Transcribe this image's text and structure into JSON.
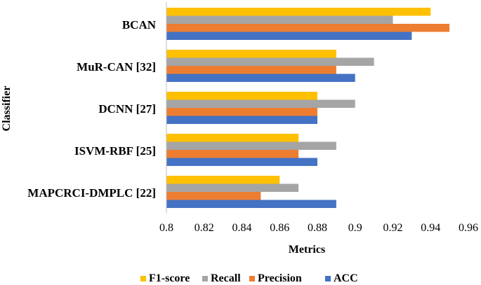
{
  "chart_data": {
    "type": "bar",
    "orientation": "horizontal",
    "categories": [
      "BCAN",
      "MuR-CAN [32]",
      "DCNN [27]",
      "ISVM-RBF [25]",
      "MAPCRCI-DMPLC [22]"
    ],
    "series": [
      {
        "name": "F1-score",
        "color": "#FFC000",
        "values": [
          0.94,
          0.89,
          0.88,
          0.87,
          0.86
        ]
      },
      {
        "name": "Recall",
        "color": "#A5A5A5",
        "values": [
          0.92,
          0.91,
          0.9,
          0.89,
          0.87
        ]
      },
      {
        "name": "Precision",
        "color": "#ED7D31",
        "values": [
          0.95,
          0.89,
          0.88,
          0.87,
          0.85
        ]
      },
      {
        "name": "ACC",
        "color": "#4472C4",
        "values": [
          0.93,
          0.9,
          0.88,
          0.88,
          0.89
        ]
      }
    ],
    "xlim": [
      0.8,
      0.96
    ],
    "xticks": [
      0.8,
      0.82,
      0.84,
      0.86,
      0.88,
      0.9,
      0.92,
      0.94,
      0.96
    ],
    "xtick_labels": [
      "0.8",
      "0.82",
      "0.84",
      "0.86",
      "0.88",
      "0.9",
      "0.92",
      "0.94",
      "0.96"
    ],
    "xlabel": "Metrics",
    "ylabel": "Classifier",
    "title": "",
    "legend_position": "bottom",
    "grid": false
  }
}
